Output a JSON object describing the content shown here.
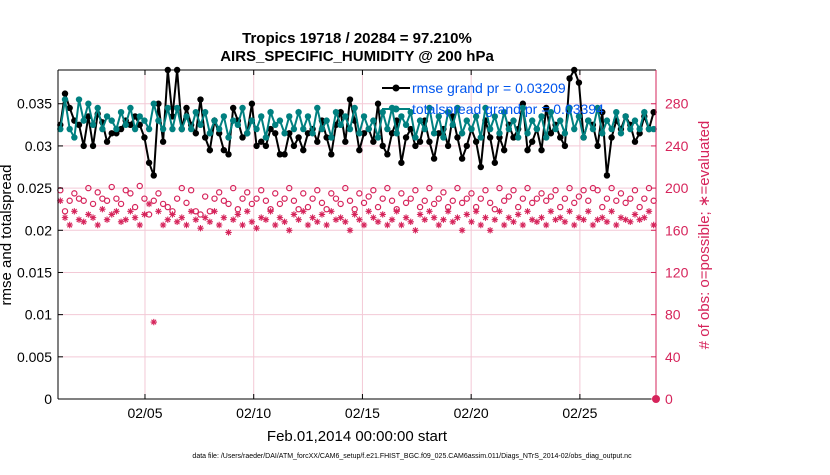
{
  "chart_data": {
    "type": "line",
    "title_line1": "Tropics 19718 / 20284 = 97.210%",
    "title_line2": "AIRS_SPECIFIC_HUMIDITY @ 200 hPa",
    "xlabel": "Feb.01,2014 00:00:00 start",
    "ylabel_left": "rmse and totalspread",
    "ylabel_right": "# of obs: o=possible; ∗=evaluated",
    "footer": "data file: /Users/raeder/DAI/ATM_forcXX/CAM6_setup/f.e21.FHIST_BGC.f09_025.CAM6assim.011/Diags_NTrS_2014-02/obs_diag_output.nc",
    "xlim": [
      1,
      28.5
    ],
    "ylim_left": [
      0,
      0.039
    ],
    "ylim_right": [
      0,
      312
    ],
    "x_ticks": [
      5,
      10,
      15,
      20,
      25
    ],
    "x_tick_labels": [
      "02/05",
      "02/10",
      "02/15",
      "02/20",
      "02/25"
    ],
    "y_ticks_left": [
      0,
      0.005,
      0.01,
      0.015,
      0.02,
      0.025,
      0.03,
      0.035
    ],
    "y_tick_labels_left": [
      "0",
      "0.005",
      "0.01",
      "0.015",
      "0.02",
      "0.025",
      "0.03",
      "0.035"
    ],
    "y_ticks_right": [
      0,
      40,
      80,
      120,
      160,
      200,
      240,
      280
    ],
    "y_tick_labels_right": [
      "0",
      "40",
      "80",
      "120",
      "160",
      "200",
      "240",
      "280"
    ],
    "legend": [
      {
        "label": "rmse grand pr = 0.03209",
        "color": "#000000"
      },
      {
        "label": "totalspread grand pr = 0.03394",
        "color": "#008080"
      }
    ],
    "colors": {
      "rmse": "#000000",
      "spread": "#008080",
      "obs": "#d6245b",
      "legend_text": "#0055ee",
      "right_axis": "#d6245b"
    },
    "rmse": [
      0.0325,
      0.0362,
      0.0345,
      0.033,
      0.0325,
      0.03,
      0.0335,
      0.03,
      0.0338,
      0.0328,
      0.0305,
      0.0315,
      0.0315,
      0.032,
      0.033,
      0.0325,
      0.0335,
      0.0325,
      0.031,
      0.028,
      0.0265,
      0.035,
      0.0305,
      0.039,
      0.0335,
      0.039,
      0.032,
      0.0345,
      0.0325,
      0.0315,
      0.0355,
      0.031,
      0.0295,
      0.033,
      0.0315,
      0.0295,
      0.029,
      0.0345,
      0.033,
      0.031,
      0.0315,
      0.035,
      0.03,
      0.0305,
      0.03,
      0.032,
      0.0315,
      0.029,
      0.029,
      0.0315,
      0.03,
      0.031,
      0.0295,
      0.0315,
      0.032,
      0.0305,
      0.033,
      0.031,
      0.029,
      0.0325,
      0.034,
      0.0305,
      0.0355,
      0.033,
      0.0295,
      0.0315,
      0.032,
      0.0305,
      0.035,
      0.03,
      0.029,
      0.0315,
      0.033,
      0.028,
      0.031,
      0.032,
      0.03,
      0.0305,
      0.033,
      0.0305,
      0.0285,
      0.0315,
      0.032,
      0.03,
      0.0335,
      0.031,
      0.0285,
      0.03,
      0.032,
      0.0305,
      0.0275,
      0.033,
      0.031,
      0.028,
      0.031,
      0.0295,
      0.0325,
      0.031,
      0.032,
      0.035,
      0.0295,
      0.0305,
      0.032,
      0.0295,
      0.0345,
      0.0315,
      0.0325,
      0.031,
      0.03,
      0.038,
      0.039,
      0.0375,
      0.031,
      0.033,
      0.0325,
      0.03,
      0.034,
      0.0265,
      0.031,
      0.033,
      0.032,
      0.0335,
      0.0325,
      0.0305,
      0.0315,
      0.0335,
      0.032,
      0.034
    ],
    "spread": [
      0.032,
      0.0355,
      0.032,
      0.031,
      0.0355,
      0.033,
      0.035,
      0.0325,
      0.0345,
      0.032,
      0.0335,
      0.033,
      0.032,
      0.034,
      0.0325,
      0.0345,
      0.032,
      0.0335,
      0.033,
      0.032,
      0.035,
      0.033,
      0.032,
      0.0345,
      0.032,
      0.0345,
      0.032,
      0.0335,
      0.032,
      0.034,
      0.0325,
      0.034,
      0.0315,
      0.033,
      0.032,
      0.0335,
      0.031,
      0.033,
      0.0325,
      0.0345,
      0.0315,
      0.033,
      0.032,
      0.0335,
      0.031,
      0.034,
      0.0325,
      0.033,
      0.0315,
      0.0335,
      0.032,
      0.034,
      0.032,
      0.0335,
      0.0315,
      0.0345,
      0.032,
      0.033,
      0.031,
      0.034,
      0.0325,
      0.0335,
      0.032,
      0.0345,
      0.0315,
      0.0335,
      0.032,
      0.033,
      0.031,
      0.034,
      0.032,
      0.0345,
      0.0315,
      0.0335,
      0.0325,
      0.034,
      0.031,
      0.033,
      0.032,
      0.0345,
      0.0315,
      0.0335,
      0.031,
      0.034,
      0.0325,
      0.0345,
      0.0315,
      0.033,
      0.032,
      0.0335,
      0.031,
      0.0345,
      0.032,
      0.0335,
      0.0315,
      0.034,
      0.032,
      0.033,
      0.031,
      0.0345,
      0.0315,
      0.033,
      0.032,
      0.0335,
      0.031,
      0.034,
      0.032,
      0.033,
      0.0315,
      0.0345,
      0.032,
      0.0335,
      0.031,
      0.033,
      0.032,
      0.0345,
      0.0315,
      0.033,
      0.032,
      0.034,
      0.0315,
      0.0335,
      0.032,
      0.033,
      0.032,
      0.034,
      0.032,
      0.032
    ],
    "obs_possible": [
      198,
      178,
      188,
      195,
      190,
      188,
      200,
      185,
      196,
      190,
      188,
      201,
      190,
      185,
      198,
      195,
      182,
      202,
      190,
      175,
      188,
      195,
      185,
      182,
      178,
      190,
      200,
      186,
      198,
      178,
      175,
      192,
      178,
      190,
      196,
      188,
      185,
      200,
      180,
      190,
      196,
      185,
      190,
      198,
      188,
      180,
      195,
      185,
      190,
      200,
      188,
      180,
      195,
      182,
      190,
      198,
      186,
      180,
      195,
      190,
      185,
      200,
      188,
      180,
      195,
      186,
      192,
      198,
      182,
      190,
      200,
      188,
      180,
      195,
      186,
      190,
      198,
      182,
      188,
      200,
      185,
      190,
      196,
      182,
      188,
      200,
      186,
      190,
      195,
      182,
      190,
      198,
      186,
      180,
      200,
      188,
      192,
      198,
      182,
      190,
      200,
      186,
      190,
      195,
      188,
      192,
      198,
      182,
      190,
      200,
      186,
      192,
      198,
      188,
      200,
      198,
      182,
      190,
      200,
      188,
      195,
      186,
      190,
      198,
      182,
      190,
      200,
      188
    ],
    "obs_evaluated": [
      188,
      172,
      165,
      178,
      170,
      168,
      175,
      172,
      165,
      180,
      170,
      175,
      178,
      168,
      170,
      178,
      172,
      165,
      175,
      185,
      73,
      178,
      165,
      170,
      175,
      168,
      172,
      165,
      178,
      170,
      162,
      172,
      168,
      178,
      165,
      172,
      158,
      170,
      175,
      165,
      178,
      168,
      162,
      172,
      170,
      178,
      165,
      172,
      168,
      160,
      175,
      170,
      178,
      165,
      172,
      168,
      175,
      165,
      178,
      170,
      172,
      168,
      160,
      175,
      170,
      165,
      178,
      172,
      168,
      175,
      165,
      170,
      178,
      165,
      172,
      168,
      160,
      175,
      170,
      178,
      172,
      165,
      170,
      178,
      168,
      172,
      160,
      175,
      168,
      178,
      165,
      172,
      160,
      170,
      178,
      165,
      172,
      168,
      175,
      165,
      178,
      170,
      168,
      172,
      165,
      178,
      170,
      172,
      168,
      178,
      165,
      172,
      170,
      178,
      165,
      170,
      172,
      168,
      178,
      165,
      172,
      170,
      168,
      175,
      170,
      172,
      178,
      165
    ]
  }
}
